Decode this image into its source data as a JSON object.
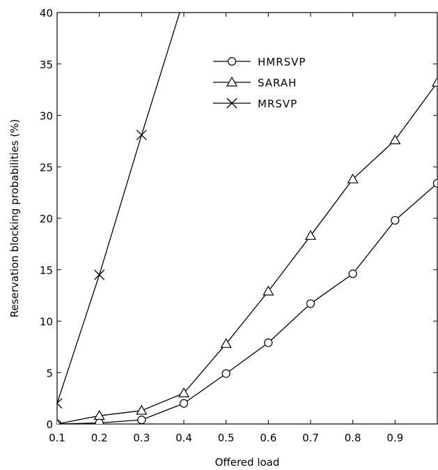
{
  "chart_data": {
    "type": "line",
    "title": "",
    "xlabel": "Offered load",
    "ylabel": "Reservation blocking probabilities (%)",
    "xlim": [
      0.1,
      1.0
    ],
    "ylim": [
      0,
      40
    ],
    "x_ticks": [
      "0.1",
      "0.2",
      "0.3",
      "0.4",
      "0.5",
      "0.6",
      "0.7",
      "0.8",
      "0.9"
    ],
    "y_ticks": [
      "0",
      "5",
      "10",
      "15",
      "20",
      "25",
      "30",
      "35",
      "40"
    ],
    "grid": false,
    "legend_position": "top-right",
    "series": [
      {
        "name": "HMRSVP",
        "marker": "circle",
        "x": [
          0.1,
          0.2,
          0.3,
          0.4,
          0.5,
          0.6,
          0.7,
          0.8,
          0.9,
          1.0
        ],
        "values": [
          0.0,
          0.1,
          0.4,
          2.0,
          4.9,
          7.9,
          11.7,
          14.6,
          19.8,
          23.4
        ]
      },
      {
        "name": "SARAH",
        "marker": "triangle",
        "x": [
          0.1,
          0.2,
          0.3,
          0.4,
          0.5,
          0.6,
          0.7,
          0.8,
          0.9,
          1.0
        ],
        "values": [
          0.0,
          0.8,
          1.3,
          3.0,
          7.8,
          12.9,
          18.3,
          23.8,
          27.6,
          33.2
        ]
      },
      {
        "name": "MRSVP",
        "marker": "x",
        "x": [
          0.1,
          0.2,
          0.3,
          0.4
        ],
        "values": [
          2.0,
          14.5,
          28.1,
          41.3
        ]
      }
    ]
  }
}
